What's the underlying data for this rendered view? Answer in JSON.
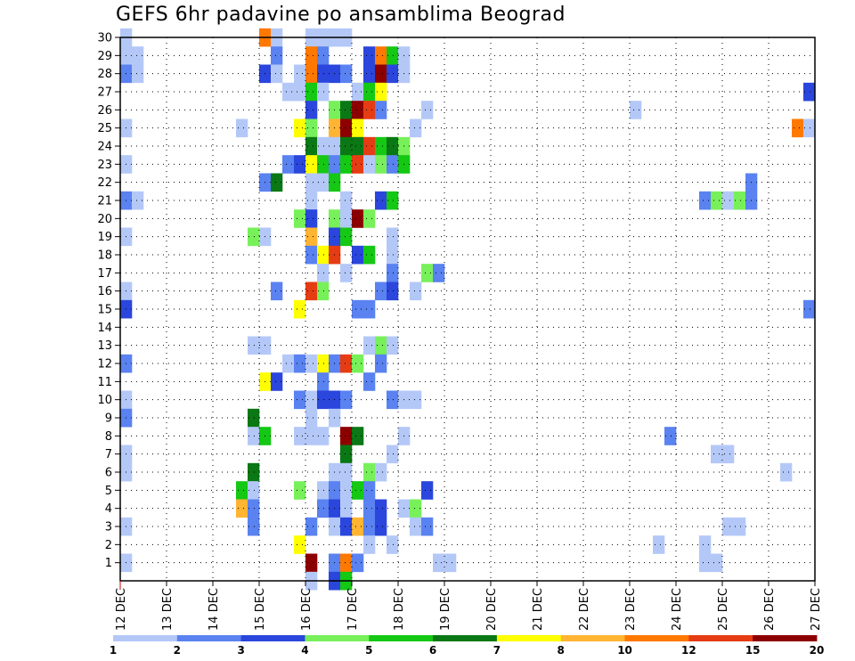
{
  "chart_data": {
    "type": "heatmap",
    "title": "GEFS 6hr padavine po ansamblima Beograd",
    "x_tick_labels": [
      "12 DEC",
      "13 DEC",
      "14 DEC",
      "15 DEC",
      "16 DEC",
      "17 DEC",
      "18 DEC",
      "19 DEC",
      "20 DEC",
      "21 DEC",
      "22 DEC",
      "23 DEC",
      "24 DEC",
      "25 DEC",
      "26 DEC",
      "27 DEC"
    ],
    "y_tick_labels": [
      "1",
      "2",
      "3",
      "4",
      "5",
      "6",
      "7",
      "8",
      "9",
      "10",
      "11",
      "12",
      "13",
      "14",
      "15",
      "16",
      "17",
      "18",
      "19",
      "20",
      "21",
      "22",
      "23",
      "24",
      "25",
      "26",
      "27",
      "28",
      "29",
      "30"
    ],
    "xlim": [
      "12 DEC 00Z",
      "27 DEC 00Z"
    ],
    "ylim": [
      0,
      30
    ],
    "time_step_hours": 6,
    "grid": true,
    "legend_position": "bottom",
    "color_scale": {
      "boundaries": [
        1,
        2,
        3,
        4,
        5,
        6,
        7,
        8,
        10,
        12,
        15,
        20
      ],
      "labels": [
        "1",
        "2",
        "3",
        "4",
        "5",
        "6",
        "7",
        "8",
        "10",
        "12",
        "15",
        "20"
      ],
      "colors": [
        "#b4c8f8",
        "#5a82f0",
        "#2a46dc",
        "#78f05a",
        "#14c814",
        "#0a7814",
        "#ffff00",
        "#ffb432",
        "#ff7800",
        "#e63c14",
        "#8c0000"
      ]
    },
    "cells": [
      {
        "m": 30,
        "t": 0,
        "v": 1.5
      },
      {
        "m": 30,
        "t": 12,
        "v": 10
      },
      {
        "m": 30,
        "t": 13,
        "v": 1.5
      },
      {
        "m": 30,
        "t": 16,
        "v": 1.5
      },
      {
        "m": 30,
        "t": 17,
        "v": 1.5
      },
      {
        "m": 30,
        "t": 18,
        "v": 1.5
      },
      {
        "m": 30,
        "t": 19,
        "v": 1.5
      },
      {
        "m": 29,
        "t": 0,
        "v": 1.5
      },
      {
        "m": 29,
        "t": 1,
        "v": 1.5
      },
      {
        "m": 29,
        "t": 13,
        "v": 2.5
      },
      {
        "m": 29,
        "t": 16,
        "v": 10
      },
      {
        "m": 29,
        "t": 17,
        "v": 2.5
      },
      {
        "m": 29,
        "t": 21,
        "v": 3.5
      },
      {
        "m": 29,
        "t": 22,
        "v": 10
      },
      {
        "m": 29,
        "t": 23,
        "v": 5.5
      },
      {
        "m": 29,
        "t": 24,
        "v": 1.5
      },
      {
        "m": 28,
        "t": 0,
        "v": 2.5
      },
      {
        "m": 28,
        "t": 1,
        "v": 1.5
      },
      {
        "m": 28,
        "t": 12,
        "v": 3.5
      },
      {
        "m": 28,
        "t": 13,
        "v": 1.5
      },
      {
        "m": 28,
        "t": 15,
        "v": 1.5
      },
      {
        "m": 28,
        "t": 16,
        "v": 10
      },
      {
        "m": 28,
        "t": 17,
        "v": 3.5
      },
      {
        "m": 28,
        "t": 18,
        "v": 3.5
      },
      {
        "m": 28,
        "t": 19,
        "v": 2.5
      },
      {
        "m": 28,
        "t": 21,
        "v": 3.5
      },
      {
        "m": 28,
        "t": 22,
        "v": 17
      },
      {
        "m": 28,
        "t": 23,
        "v": 3.5
      },
      {
        "m": 28,
        "t": 24,
        "v": 1.5
      },
      {
        "m": 27,
        "t": 14,
        "v": 1.5
      },
      {
        "m": 27,
        "t": 15,
        "v": 1.5
      },
      {
        "m": 27,
        "t": 16,
        "v": 5.5
      },
      {
        "m": 27,
        "t": 17,
        "v": 1.5
      },
      {
        "m": 27,
        "t": 20,
        "v": 1.5
      },
      {
        "m": 27,
        "t": 21,
        "v": 5.5
      },
      {
        "m": 27,
        "t": 22,
        "v": 7.5
      },
      {
        "m": 27,
        "t": 59,
        "v": 3.5
      },
      {
        "m": 26,
        "t": 16,
        "v": 3.5
      },
      {
        "m": 26,
        "t": 18,
        "v": 4.5
      },
      {
        "m": 26,
        "t": 19,
        "v": 6.5
      },
      {
        "m": 26,
        "t": 20,
        "v": 17
      },
      {
        "m": 26,
        "t": 21,
        "v": 13
      },
      {
        "m": 26,
        "t": 22,
        "v": 2.5
      },
      {
        "m": 26,
        "t": 26,
        "v": 1.5
      },
      {
        "m": 26,
        "t": 44,
        "v": 1.5
      },
      {
        "m": 25,
        "t": 0,
        "v": 1.5
      },
      {
        "m": 25,
        "t": 10,
        "v": 1.5
      },
      {
        "m": 25,
        "t": 15,
        "v": 7.5
      },
      {
        "m": 25,
        "t": 16,
        "v": 4.5
      },
      {
        "m": 25,
        "t": 18,
        "v": 9
      },
      {
        "m": 25,
        "t": 19,
        "v": 17
      },
      {
        "m": 25,
        "t": 20,
        "v": 7.5
      },
      {
        "m": 25,
        "t": 25,
        "v": 1.5
      },
      {
        "m": 25,
        "t": 58,
        "v": 10
      },
      {
        "m": 25,
        "t": 59,
        "v": 1.5
      },
      {
        "m": 24,
        "t": 16,
        "v": 6.5
      },
      {
        "m": 24,
        "t": 17,
        "v": 1.5
      },
      {
        "m": 24,
        "t": 18,
        "v": 1.5
      },
      {
        "m": 24,
        "t": 19,
        "v": 6.5
      },
      {
        "m": 24,
        "t": 20,
        "v": 6.5
      },
      {
        "m": 24,
        "t": 21,
        "v": 13
      },
      {
        "m": 24,
        "t": 22,
        "v": 5.5
      },
      {
        "m": 24,
        "t": 23,
        "v": 6.5
      },
      {
        "m": 24,
        "t": 24,
        "v": 4.5
      },
      {
        "m": 23,
        "t": 0,
        "v": 1.5
      },
      {
        "m": 23,
        "t": 14,
        "v": 2.5
      },
      {
        "m": 23,
        "t": 15,
        "v": 3.5
      },
      {
        "m": 23,
        "t": 16,
        "v": 7.5
      },
      {
        "m": 23,
        "t": 17,
        "v": 5.5
      },
      {
        "m": 23,
        "t": 18,
        "v": 2.5
      },
      {
        "m": 23,
        "t": 19,
        "v": 5.5
      },
      {
        "m": 23,
        "t": 20,
        "v": 13
      },
      {
        "m": 23,
        "t": 21,
        "v": 1.5
      },
      {
        "m": 23,
        "t": 22,
        "v": 4.5
      },
      {
        "m": 23,
        "t": 23,
        "v": 2.5
      },
      {
        "m": 23,
        "t": 24,
        "v": 5.5
      },
      {
        "m": 22,
        "t": 12,
        "v": 2.5
      },
      {
        "m": 22,
        "t": 13,
        "v": 6.5
      },
      {
        "m": 22,
        "t": 16,
        "v": 1.5
      },
      {
        "m": 22,
        "t": 17,
        "v": 1.5
      },
      {
        "m": 22,
        "t": 18,
        "v": 5.5
      },
      {
        "m": 22,
        "t": 54,
        "v": 2.5
      },
      {
        "m": 21,
        "t": 0,
        "v": 2.5
      },
      {
        "m": 21,
        "t": 1,
        "v": 1.5
      },
      {
        "m": 21,
        "t": 16,
        "v": 1.5
      },
      {
        "m": 21,
        "t": 19,
        "v": 1.5
      },
      {
        "m": 21,
        "t": 22,
        "v": 3.5
      },
      {
        "m": 21,
        "t": 23,
        "v": 5.5
      },
      {
        "m": 21,
        "t": 50,
        "v": 2.5
      },
      {
        "m": 21,
        "t": 51,
        "v": 4.5
      },
      {
        "m": 21,
        "t": 52,
        "v": 1.5
      },
      {
        "m": 21,
        "t": 53,
        "v": 4.5
      },
      {
        "m": 21,
        "t": 54,
        "v": 2.5
      },
      {
        "m": 20,
        "t": 15,
        "v": 4.5
      },
      {
        "m": 20,
        "t": 16,
        "v": 3.5
      },
      {
        "m": 20,
        "t": 18,
        "v": 4.5
      },
      {
        "m": 20,
        "t": 19,
        "v": 1.5
      },
      {
        "m": 20,
        "t": 20,
        "v": 17
      },
      {
        "m": 20,
        "t": 21,
        "v": 4.5
      },
      {
        "m": 19,
        "t": 0,
        "v": 1.5
      },
      {
        "m": 19,
        "t": 11,
        "v": 4.5
      },
      {
        "m": 19,
        "t": 12,
        "v": 1.5
      },
      {
        "m": 19,
        "t": 16,
        "v": 9
      },
      {
        "m": 19,
        "t": 18,
        "v": 3.5
      },
      {
        "m": 19,
        "t": 19,
        "v": 5.5
      },
      {
        "m": 19,
        "t": 23,
        "v": 1.5
      },
      {
        "m": 18,
        "t": 16,
        "v": 2.5
      },
      {
        "m": 18,
        "t": 17,
        "v": 7.5
      },
      {
        "m": 18,
        "t": 18,
        "v": 13
      },
      {
        "m": 18,
        "t": 20,
        "v": 3.5
      },
      {
        "m": 18,
        "t": 21,
        "v": 5.5
      },
      {
        "m": 18,
        "t": 23,
        "v": 1.5
      },
      {
        "m": 17,
        "t": 17,
        "v": 1.5
      },
      {
        "m": 17,
        "t": 19,
        "v": 1.5
      },
      {
        "m": 17,
        "t": 23,
        "v": 2.5
      },
      {
        "m": 17,
        "t": 26,
        "v": 4.5
      },
      {
        "m": 17,
        "t": 27,
        "v": 2.5
      },
      {
        "m": 16,
        "t": 0,
        "v": 1.5
      },
      {
        "m": 16,
        "t": 13,
        "v": 2.5
      },
      {
        "m": 16,
        "t": 16,
        "v": 13
      },
      {
        "m": 16,
        "t": 17,
        "v": 4.5
      },
      {
        "m": 16,
        "t": 22,
        "v": 2.5
      },
      {
        "m": 16,
        "t": 23,
        "v": 3.5
      },
      {
        "m": 16,
        "t": 25,
        "v": 1.5
      },
      {
        "m": 15,
        "t": 0,
        "v": 3.5
      },
      {
        "m": 15,
        "t": 15,
        "v": 7.5
      },
      {
        "m": 15,
        "t": 20,
        "v": 2.5
      },
      {
        "m": 15,
        "t": 21,
        "v": 2.5
      },
      {
        "m": 15,
        "t": 59,
        "v": 2.5
      },
      {
        "m": 13,
        "t": 11,
        "v": 1.5
      },
      {
        "m": 13,
        "t": 12,
        "v": 1.5
      },
      {
        "m": 13,
        "t": 21,
        "v": 1.5
      },
      {
        "m": 13,
        "t": 22,
        "v": 4.5
      },
      {
        "m": 13,
        "t": 23,
        "v": 1.5
      },
      {
        "m": 12,
        "t": 0,
        "v": 2.5
      },
      {
        "m": 12,
        "t": 14,
        "v": 1.5
      },
      {
        "m": 12,
        "t": 15,
        "v": 2.5
      },
      {
        "m": 12,
        "t": 16,
        "v": 1.5
      },
      {
        "m": 12,
        "t": 17,
        "v": 7.5
      },
      {
        "m": 12,
        "t": 18,
        "v": 2.5
      },
      {
        "m": 12,
        "t": 19,
        "v": 13
      },
      {
        "m": 12,
        "t": 20,
        "v": 4.5
      },
      {
        "m": 12,
        "t": 22,
        "v": 2.5
      },
      {
        "m": 11,
        "t": 12,
        "v": 7.5
      },
      {
        "m": 11,
        "t": 13,
        "v": 3.5
      },
      {
        "m": 11,
        "t": 17,
        "v": 2.5
      },
      {
        "m": 11,
        "t": 21,
        "v": 2.5
      },
      {
        "m": 10,
        "t": 0,
        "v": 1.5
      },
      {
        "m": 10,
        "t": 15,
        "v": 2.5
      },
      {
        "m": 10,
        "t": 16,
        "v": 1.5
      },
      {
        "m": 10,
        "t": 17,
        "v": 3.5
      },
      {
        "m": 10,
        "t": 18,
        "v": 3.5
      },
      {
        "m": 10,
        "t": 19,
        "v": 2.5
      },
      {
        "m": 10,
        "t": 23,
        "v": 2.5
      },
      {
        "m": 10,
        "t": 24,
        "v": 1.5
      },
      {
        "m": 10,
        "t": 25,
        "v": 1.5
      },
      {
        "m": 9,
        "t": 0,
        "v": 2.5
      },
      {
        "m": 9,
        "t": 11,
        "v": 6.5
      },
      {
        "m": 9,
        "t": 16,
        "v": 1.5
      },
      {
        "m": 9,
        "t": 18,
        "v": 1.5
      },
      {
        "m": 8,
        "t": 11,
        "v": 1.5
      },
      {
        "m": 8,
        "t": 12,
        "v": 5.5
      },
      {
        "m": 8,
        "t": 15,
        "v": 1.5
      },
      {
        "m": 8,
        "t": 16,
        "v": 1.5
      },
      {
        "m": 8,
        "t": 17,
        "v": 1.5
      },
      {
        "m": 8,
        "t": 19,
        "v": 17
      },
      {
        "m": 8,
        "t": 20,
        "v": 6.5
      },
      {
        "m": 8,
        "t": 24,
        "v": 1.5
      },
      {
        "m": 8,
        "t": 47,
        "v": 2.5
      },
      {
        "m": 7,
        "t": 0,
        "v": 1.5
      },
      {
        "m": 7,
        "t": 19,
        "v": 6.5
      },
      {
        "m": 7,
        "t": 23,
        "v": 1.5
      },
      {
        "m": 7,
        "t": 51,
        "v": 1.5
      },
      {
        "m": 7,
        "t": 52,
        "v": 1.5
      },
      {
        "m": 6,
        "t": 0,
        "v": 1.5
      },
      {
        "m": 6,
        "t": 11,
        "v": 6.5
      },
      {
        "m": 6,
        "t": 18,
        "v": 1.5
      },
      {
        "m": 6,
        "t": 19,
        "v": 1.5
      },
      {
        "m": 6,
        "t": 21,
        "v": 4.5
      },
      {
        "m": 6,
        "t": 22,
        "v": 1.5
      },
      {
        "m": 6,
        "t": 57,
        "v": 1.5
      },
      {
        "m": 5,
        "t": 10,
        "v": 5.5
      },
      {
        "m": 5,
        "t": 11,
        "v": 1.5
      },
      {
        "m": 5,
        "t": 15,
        "v": 4.5
      },
      {
        "m": 5,
        "t": 17,
        "v": 1.5
      },
      {
        "m": 5,
        "t": 18,
        "v": 2.5
      },
      {
        "m": 5,
        "t": 19,
        "v": 1.5
      },
      {
        "m": 5,
        "t": 20,
        "v": 5.5
      },
      {
        "m": 5,
        "t": 21,
        "v": 2.5
      },
      {
        "m": 5,
        "t": 26,
        "v": 3.5
      },
      {
        "m": 4,
        "t": 10,
        "v": 9
      },
      {
        "m": 4,
        "t": 11,
        "v": 2.5
      },
      {
        "m": 4,
        "t": 17,
        "v": 2.5
      },
      {
        "m": 4,
        "t": 18,
        "v": 3.5
      },
      {
        "m": 4,
        "t": 19,
        "v": 1.5
      },
      {
        "m": 4,
        "t": 21,
        "v": 2.5
      },
      {
        "m": 4,
        "t": 22,
        "v": 3.5
      },
      {
        "m": 4,
        "t": 24,
        "v": 1.5
      },
      {
        "m": 4,
        "t": 25,
        "v": 4.5
      },
      {
        "m": 3,
        "t": 0,
        "v": 1.5
      },
      {
        "m": 3,
        "t": 11,
        "v": 2.5
      },
      {
        "m": 3,
        "t": 16,
        "v": 2.5
      },
      {
        "m": 3,
        "t": 18,
        "v": 1.5
      },
      {
        "m": 3,
        "t": 19,
        "v": 3.5
      },
      {
        "m": 3,
        "t": 20,
        "v": 9
      },
      {
        "m": 3,
        "t": 21,
        "v": 2.5
      },
      {
        "m": 3,
        "t": 22,
        "v": 3.5
      },
      {
        "m": 3,
        "t": 25,
        "v": 1.5
      },
      {
        "m": 3,
        "t": 26,
        "v": 2.5
      },
      {
        "m": 3,
        "t": 52,
        "v": 1.5
      },
      {
        "m": 3,
        "t": 53,
        "v": 1.5
      },
      {
        "m": 2,
        "t": 15,
        "v": 7.5
      },
      {
        "m": 2,
        "t": 21,
        "v": 1.5
      },
      {
        "m": 2,
        "t": 23,
        "v": 1.5
      },
      {
        "m": 2,
        "t": 46,
        "v": 1.5
      },
      {
        "m": 2,
        "t": 50,
        "v": 1.5
      },
      {
        "m": 1,
        "t": 0,
        "v": 1.5
      },
      {
        "m": 1,
        "t": 16,
        "v": 17
      },
      {
        "m": 1,
        "t": 18,
        "v": 2.5
      },
      {
        "m": 1,
        "t": 19,
        "v": 10
      },
      {
        "m": 1,
        "t": 20,
        "v": 2.5
      },
      {
        "m": 1,
        "t": 27,
        "v": 1.5
      },
      {
        "m": 1,
        "t": 28,
        "v": 1.5
      },
      {
        "m": 1,
        "t": 50,
        "v": 1.5
      },
      {
        "m": 1,
        "t": 51,
        "v": 1.5
      },
      {
        "m": 0,
        "t": 16,
        "v": 1.5
      },
      {
        "m": 0,
        "t": 18,
        "v": 3.5
      },
      {
        "m": 0,
        "t": 19,
        "v": 5.5
      }
    ]
  }
}
